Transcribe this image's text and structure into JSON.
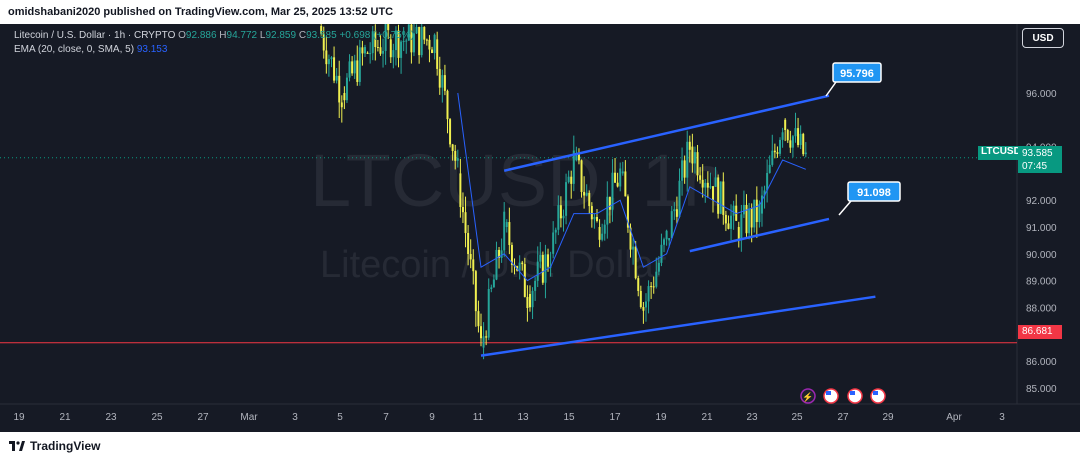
{
  "header": {
    "text": "omidshabani2020 published on TradingView.com, Mar 25, 2025 13:52 UTC"
  },
  "legend": {
    "symbol": "Litecoin / U.S. Dollar · 1h · CRYPTO",
    "o_label": "O",
    "o": "92.886",
    "h_label": "H",
    "h": "94.772",
    "l_label": "L",
    "l": "92.859",
    "c_label": "C",
    "c": "93.585",
    "change": "+0.698 (+0.75%)",
    "ema_label": "EMA (20, close, 0, SMA, 5)",
    "ema_value": "93.153"
  },
  "currency_button": "USD",
  "watermark": {
    "symbol": "LTCUSD, 1h",
    "name": "Litecoin / U.S. Dollar"
  },
  "price_tags": {
    "symbol": "LTCUSD",
    "last": "93.585",
    "countdown": "07:45",
    "support": "86.681"
  },
  "callouts": {
    "upper": "95.796",
    "lower": "91.098"
  },
  "footer": {
    "logo_text": "TradingView"
  },
  "colors": {
    "background": "#161a25",
    "candle_up": "#26a69a",
    "candle_down": "#f0f050",
    "ema": "#2962ff",
    "trendline": "#2962ff",
    "support": "#f23645",
    "last_price": "#089981"
  },
  "icons": [
    "zap-icon",
    "us-flag-icon",
    "us-flag-icon",
    "us-flag-icon"
  ],
  "chart_data": {
    "type": "line",
    "title": "",
    "xlabel": "",
    "ylabel": "",
    "x_ticks": [
      "19",
      "21",
      "23",
      "25",
      "27",
      "Mar",
      "3",
      "5",
      "7",
      "9",
      "11",
      "13",
      "15",
      "17",
      "19",
      "21",
      "23",
      "25",
      "27",
      "29",
      "Apr",
      "3"
    ],
    "y_ticks": [
      "85.000",
      "86.000",
      "87.000",
      "88.000",
      "89.000",
      "90.000",
      "91.000",
      "92.000",
      "94.000",
      "96.000"
    ],
    "ylim": [
      84.0,
      98.5
    ],
    "grid": false,
    "series": [
      {
        "kind": "price",
        "x": [
          "2025-03-04",
          "2025-03-05",
          "2025-03-06",
          "2025-03-07",
          "2025-03-09",
          "2025-03-10",
          "2025-03-11",
          "2025-03-12",
          "2025-03-13",
          "2025-03-14",
          "2025-03-15",
          "2025-03-16",
          "2025-03-17",
          "2025-03-18",
          "2025-03-19",
          "2025-03-20",
          "2025-03-21",
          "2025-03-22",
          "2025-03-23",
          "2025-03-24",
          "2025-03-25"
        ],
        "y": [
          98.5,
          96.0,
          97.5,
          98.0,
          98.0,
          93.0,
          86.5,
          91.0,
          88.5,
          90.0,
          93.5,
          91.0,
          93.0,
          88.0,
          90.5,
          94.0,
          92.5,
          91.0,
          91.5,
          95.0,
          93.585
        ]
      },
      {
        "kind": "ema",
        "x": [
          "2025-03-10",
          "2025-03-11",
          "2025-03-12",
          "2025-03-13",
          "2025-03-14",
          "2025-03-15",
          "2025-03-16",
          "2025-03-17",
          "2025-03-18",
          "2025-03-19",
          "2025-03-20",
          "2025-03-21",
          "2025-03-22",
          "2025-03-23",
          "2025-03-24",
          "2025-03-25"
        ],
        "y": [
          96.0,
          89.5,
          90.0,
          89.0,
          89.5,
          91.5,
          91.5,
          92.0,
          89.5,
          90.0,
          92.5,
          92.0,
          91.5,
          91.8,
          93.5,
          93.153
        ]
      }
    ],
    "annotations": [
      {
        "type": "trendline",
        "x1": "2025-03-12",
        "y1": 93.1,
        "x2": "2025-03-26",
        "y2": 95.9
      },
      {
        "type": "trendline",
        "x1": "2025-03-20",
        "y1": 90.1,
        "x2": "2025-03-26",
        "y2": 91.3
      },
      {
        "type": "trendline",
        "x1": "2025-03-11",
        "y1": 86.2,
        "x2": "2025-03-28",
        "y2": 88.4
      },
      {
        "type": "hline",
        "y": 86.681
      },
      {
        "type": "hline",
        "y": 93.585,
        "style": "dotted"
      }
    ]
  }
}
